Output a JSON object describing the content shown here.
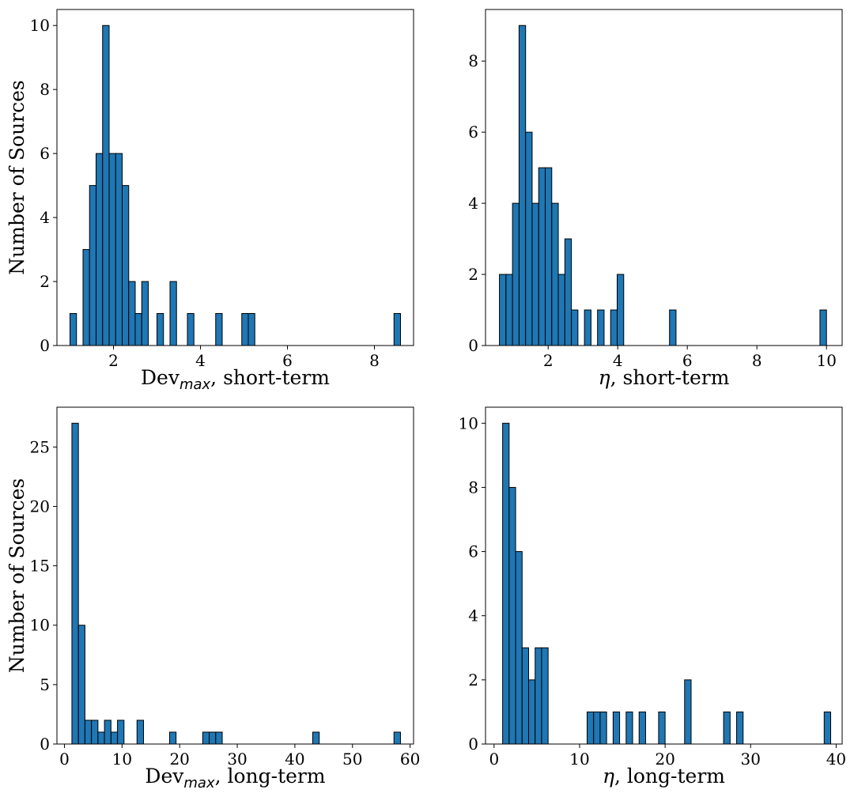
{
  "chart_data": [
    {
      "type": "bar",
      "panel": "top-left",
      "xlabel_main": "Dev",
      "xlabel_sub": "max",
      "xlabel_rest": ", short-term",
      "ylabel": "Number of Sources",
      "xlim": [
        0.7,
        8.9
      ],
      "ylim": [
        0,
        10.5
      ],
      "xticks": [
        2,
        4,
        6,
        8
      ],
      "yticks": [
        0,
        2,
        4,
        6,
        8,
        10
      ],
      "bin_width": 0.15,
      "bins": [
        {
          "x": 1.0,
          "count": 1
        },
        {
          "x": 1.3,
          "count": 3
        },
        {
          "x": 1.45,
          "count": 5
        },
        {
          "x": 1.6,
          "count": 6
        },
        {
          "x": 1.75,
          "count": 10
        },
        {
          "x": 1.9,
          "count": 6
        },
        {
          "x": 2.05,
          "count": 6
        },
        {
          "x": 2.2,
          "count": 5
        },
        {
          "x": 2.35,
          "count": 2
        },
        {
          "x": 2.5,
          "count": 1
        },
        {
          "x": 2.65,
          "count": 2
        },
        {
          "x": 3.0,
          "count": 1
        },
        {
          "x": 3.3,
          "count": 2
        },
        {
          "x": 3.7,
          "count": 1
        },
        {
          "x": 4.35,
          "count": 1
        },
        {
          "x": 4.95,
          "count": 1
        },
        {
          "x": 5.1,
          "count": 1
        },
        {
          "x": 8.45,
          "count": 1
        }
      ]
    },
    {
      "type": "bar",
      "panel": "top-right",
      "xlabel_main": "η",
      "xlabel_sub": "",
      "xlabel_rest": ", short-term",
      "ylabel": "",
      "xlim": [
        0.2,
        10.45
      ],
      "ylim": [
        0,
        9.45
      ],
      "xticks": [
        2,
        4,
        6,
        8,
        10
      ],
      "yticks": [
        0,
        2,
        4,
        6,
        8
      ],
      "bin_width": 0.188,
      "bins": [
        {
          "x": 0.6,
          "count": 2
        },
        {
          "x": 0.788,
          "count": 2
        },
        {
          "x": 0.976,
          "count": 4
        },
        {
          "x": 1.164,
          "count": 9
        },
        {
          "x": 1.352,
          "count": 6
        },
        {
          "x": 1.54,
          "count": 4
        },
        {
          "x": 1.728,
          "count": 5
        },
        {
          "x": 1.916,
          "count": 5
        },
        {
          "x": 2.104,
          "count": 4
        },
        {
          "x": 2.292,
          "count": 2
        },
        {
          "x": 2.48,
          "count": 3
        },
        {
          "x": 2.668,
          "count": 1
        },
        {
          "x": 3.044,
          "count": 1
        },
        {
          "x": 3.42,
          "count": 1
        },
        {
          "x": 3.796,
          "count": 1
        },
        {
          "x": 3.984,
          "count": 2
        },
        {
          "x": 5.488,
          "count": 1
        },
        {
          "x": 9.812,
          "count": 1
        }
      ]
    },
    {
      "type": "bar",
      "panel": "bottom-left",
      "xlabel_main": "Dev",
      "xlabel_sub": "max",
      "xlabel_rest": ", long-term",
      "ylabel": "Number of Sources",
      "xlim": [
        -1.3,
        60.6
      ],
      "ylim": [
        0,
        28.35
      ],
      "xticks": [
        0,
        10,
        20,
        30,
        40,
        50,
        60
      ],
      "yticks": [
        0,
        5,
        10,
        15,
        20,
        25
      ],
      "bin_width": 1.13,
      "bins": [
        {
          "x": 1.3,
          "count": 27
        },
        {
          "x": 2.43,
          "count": 10
        },
        {
          "x": 3.56,
          "count": 2
        },
        {
          "x": 4.69,
          "count": 2
        },
        {
          "x": 5.82,
          "count": 1
        },
        {
          "x": 6.95,
          "count": 2
        },
        {
          "x": 8.08,
          "count": 1
        },
        {
          "x": 9.21,
          "count": 2
        },
        {
          "x": 12.6,
          "count": 2
        },
        {
          "x": 18.25,
          "count": 1
        },
        {
          "x": 24.0,
          "count": 1
        },
        {
          "x": 25.13,
          "count": 1
        },
        {
          "x": 26.26,
          "count": 1
        },
        {
          "x": 43.1,
          "count": 1
        },
        {
          "x": 57.2,
          "count": 1
        }
      ]
    },
    {
      "type": "bar",
      "panel": "bottom-right",
      "xlabel_main": "η",
      "xlabel_sub": "",
      "xlabel_rest": ", long-term",
      "ylabel": "",
      "xlim": [
        -1.0,
        40.7
      ],
      "ylim": [
        0,
        10.5
      ],
      "xticks": [
        0,
        10,
        20,
        30,
        40
      ],
      "yticks": [
        0,
        2,
        4,
        6,
        8,
        10
      ],
      "bin_width": 0.76,
      "bins": [
        {
          "x": 1.0,
          "count": 10
        },
        {
          "x": 1.76,
          "count": 8
        },
        {
          "x": 2.52,
          "count": 6
        },
        {
          "x": 3.28,
          "count": 3
        },
        {
          "x": 4.04,
          "count": 2
        },
        {
          "x": 4.8,
          "count": 3
        },
        {
          "x": 5.56,
          "count": 3
        },
        {
          "x": 10.88,
          "count": 1
        },
        {
          "x": 11.64,
          "count": 1
        },
        {
          "x": 12.4,
          "count": 1
        },
        {
          "x": 13.92,
          "count": 1
        },
        {
          "x": 15.44,
          "count": 1
        },
        {
          "x": 16.96,
          "count": 1
        },
        {
          "x": 19.24,
          "count": 1
        },
        {
          "x": 22.28,
          "count": 2
        },
        {
          "x": 26.84,
          "count": 1
        },
        {
          "x": 28.36,
          "count": 1
        },
        {
          "x": 38.6,
          "count": 1
        }
      ]
    }
  ],
  "style": {
    "bar_color": "#1f77b4",
    "edge_color": "#000000"
  }
}
